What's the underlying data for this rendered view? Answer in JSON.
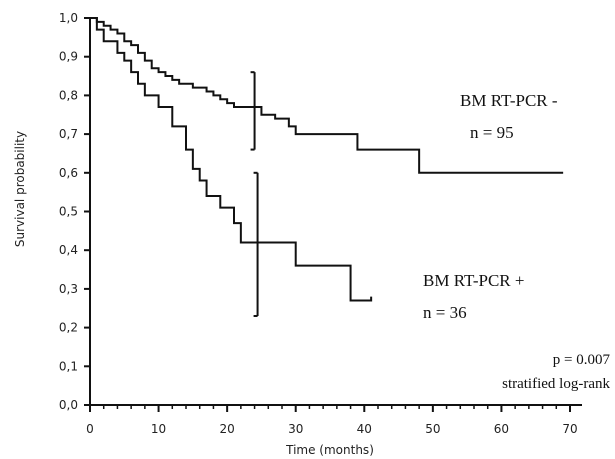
{
  "chart_data": {
    "type": "line",
    "subtype": "kaplan-meier step curve",
    "title": "",
    "xlabel": "Time (months)",
    "ylabel": "Survival probability",
    "xlim": [
      0,
      70
    ],
    "ylim": [
      0,
      1
    ],
    "x_ticks": [
      "0",
      "10",
      "20",
      "30",
      "40",
      "50",
      "60",
      "70"
    ],
    "y_ticks": [
      "0,0",
      "0,1",
      "0,2",
      "0,3",
      "0,4",
      "0,5",
      "0,6",
      "0,7",
      "0,8",
      "0,9",
      "1,0"
    ],
    "grid": false,
    "series": [
      {
        "name": "BM RT-PCR -",
        "n_label": "n = 95",
        "color": "#111111",
        "points": [
          [
            0,
            1.0
          ],
          [
            1,
            0.99
          ],
          [
            2,
            0.98
          ],
          [
            3,
            0.97
          ],
          [
            4,
            0.96
          ],
          [
            5,
            0.94
          ],
          [
            6,
            0.93
          ],
          [
            7,
            0.91
          ],
          [
            8,
            0.89
          ],
          [
            9,
            0.87
          ],
          [
            10,
            0.86
          ],
          [
            11,
            0.85
          ],
          [
            12,
            0.84
          ],
          [
            13,
            0.83
          ],
          [
            15,
            0.82
          ],
          [
            17,
            0.81
          ],
          [
            18,
            0.8
          ],
          [
            19,
            0.79
          ],
          [
            20,
            0.78
          ],
          [
            21,
            0.77
          ],
          [
            24,
            0.77
          ],
          [
            25,
            0.75
          ],
          [
            27,
            0.74
          ],
          [
            29,
            0.72
          ],
          [
            30,
            0.7
          ],
          [
            39,
            0.66
          ],
          [
            48,
            0.6
          ],
          [
            69,
            0.6
          ]
        ],
        "ci_at": 24,
        "ci": [
          0.66,
          0.86
        ]
      },
      {
        "name": "BM RT-PCR +",
        "n_label": "n = 36",
        "color": "#111111",
        "points": [
          [
            0,
            1.0
          ],
          [
            1,
            0.97
          ],
          [
            2,
            0.94
          ],
          [
            4,
            0.91
          ],
          [
            5,
            0.89
          ],
          [
            6,
            0.86
          ],
          [
            7,
            0.83
          ],
          [
            8,
            0.8
          ],
          [
            10,
            0.77
          ],
          [
            12,
            0.72
          ],
          [
            14,
            0.66
          ],
          [
            15,
            0.61
          ],
          [
            16,
            0.58
          ],
          [
            17,
            0.54
          ],
          [
            19,
            0.51
          ],
          [
            21,
            0.47
          ],
          [
            22,
            0.42
          ],
          [
            30,
            0.36
          ],
          [
            38,
            0.27
          ],
          [
            41,
            0.28
          ]
        ],
        "ci_at": 24,
        "ci": [
          0.23,
          0.6
        ]
      }
    ],
    "annotations": [
      "p = 0.007",
      "stratified log-rank"
    ]
  }
}
